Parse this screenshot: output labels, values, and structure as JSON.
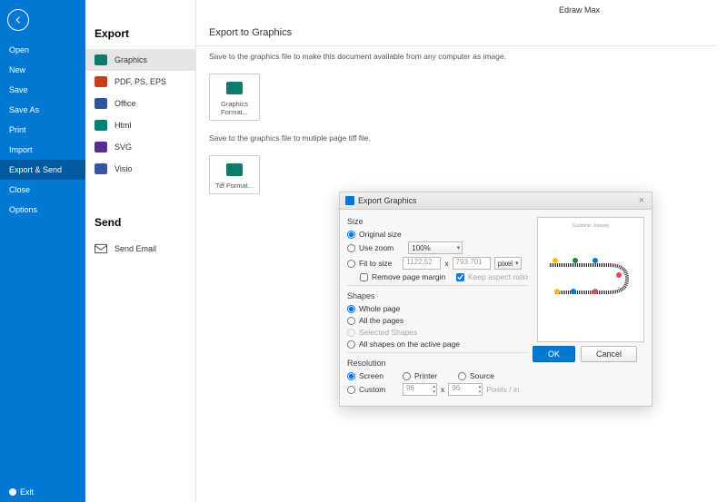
{
  "app_title": "Edraw Max",
  "sidebar": {
    "items": [
      "Open",
      "New",
      "Save",
      "Save As",
      "Print",
      "Import",
      "Export & Send",
      "Close",
      "Options"
    ],
    "active_index": 6,
    "exit_label": "Exit"
  },
  "export_panel": {
    "title": "Export",
    "items": [
      {
        "label": "Graphics",
        "icon": "icon-green"
      },
      {
        "label": "PDF, PS, EPS",
        "icon": "icon-red"
      },
      {
        "label": "Office",
        "icon": "icon-blue"
      },
      {
        "label": "Html",
        "icon": "icon-teal"
      },
      {
        "label": "SVG",
        "icon": "icon-purple"
      },
      {
        "label": "Visio",
        "icon": "icon-vblue"
      }
    ],
    "active_index": 0,
    "send_title": "Send",
    "send_item": "Send Email"
  },
  "main": {
    "title": "Export to Graphics",
    "desc1": "Save to the graphics file to make this document available from any computer as image.",
    "tile1": "Graphics Format...",
    "desc2": "Save to the graphics file to mutiple page tiff file.",
    "tile2": "Tiff Format..."
  },
  "dialog": {
    "title": "Export Graphics",
    "size_label": "Size",
    "original_size": "Original size",
    "use_zoom": "Use zoom",
    "zoom_value": "100%",
    "fit_to_size": "Fit to size",
    "width_value": "1122.52",
    "x_label": "x",
    "height_value": "793.701",
    "unit": "pixel",
    "remove_margin": "Remove page margin",
    "keep_aspect": "Keep aspect ratio",
    "shapes_label": "Shapes",
    "whole_page": "Whole page",
    "all_pages": "All the pages",
    "selected_shapes": "Selected Shapes",
    "active_page": "All shapes on the active page",
    "resolution_label": "Resolution",
    "screen": "Screen",
    "printer": "Printer",
    "source": "Source",
    "custom": "Custom",
    "res_x": "96",
    "res_y": "96",
    "res_unit": "Pixels / in",
    "ok": "OK",
    "cancel": "Cancel",
    "preview_title": "Customer Journey",
    "colors": {
      "primary": "#0078d4",
      "pin_red": "#e74856",
      "pin_yellow": "#ffb900",
      "pin_green": "#10893e",
      "pin_blue": "#0078d4",
      "road": "#2b2b2b"
    }
  }
}
